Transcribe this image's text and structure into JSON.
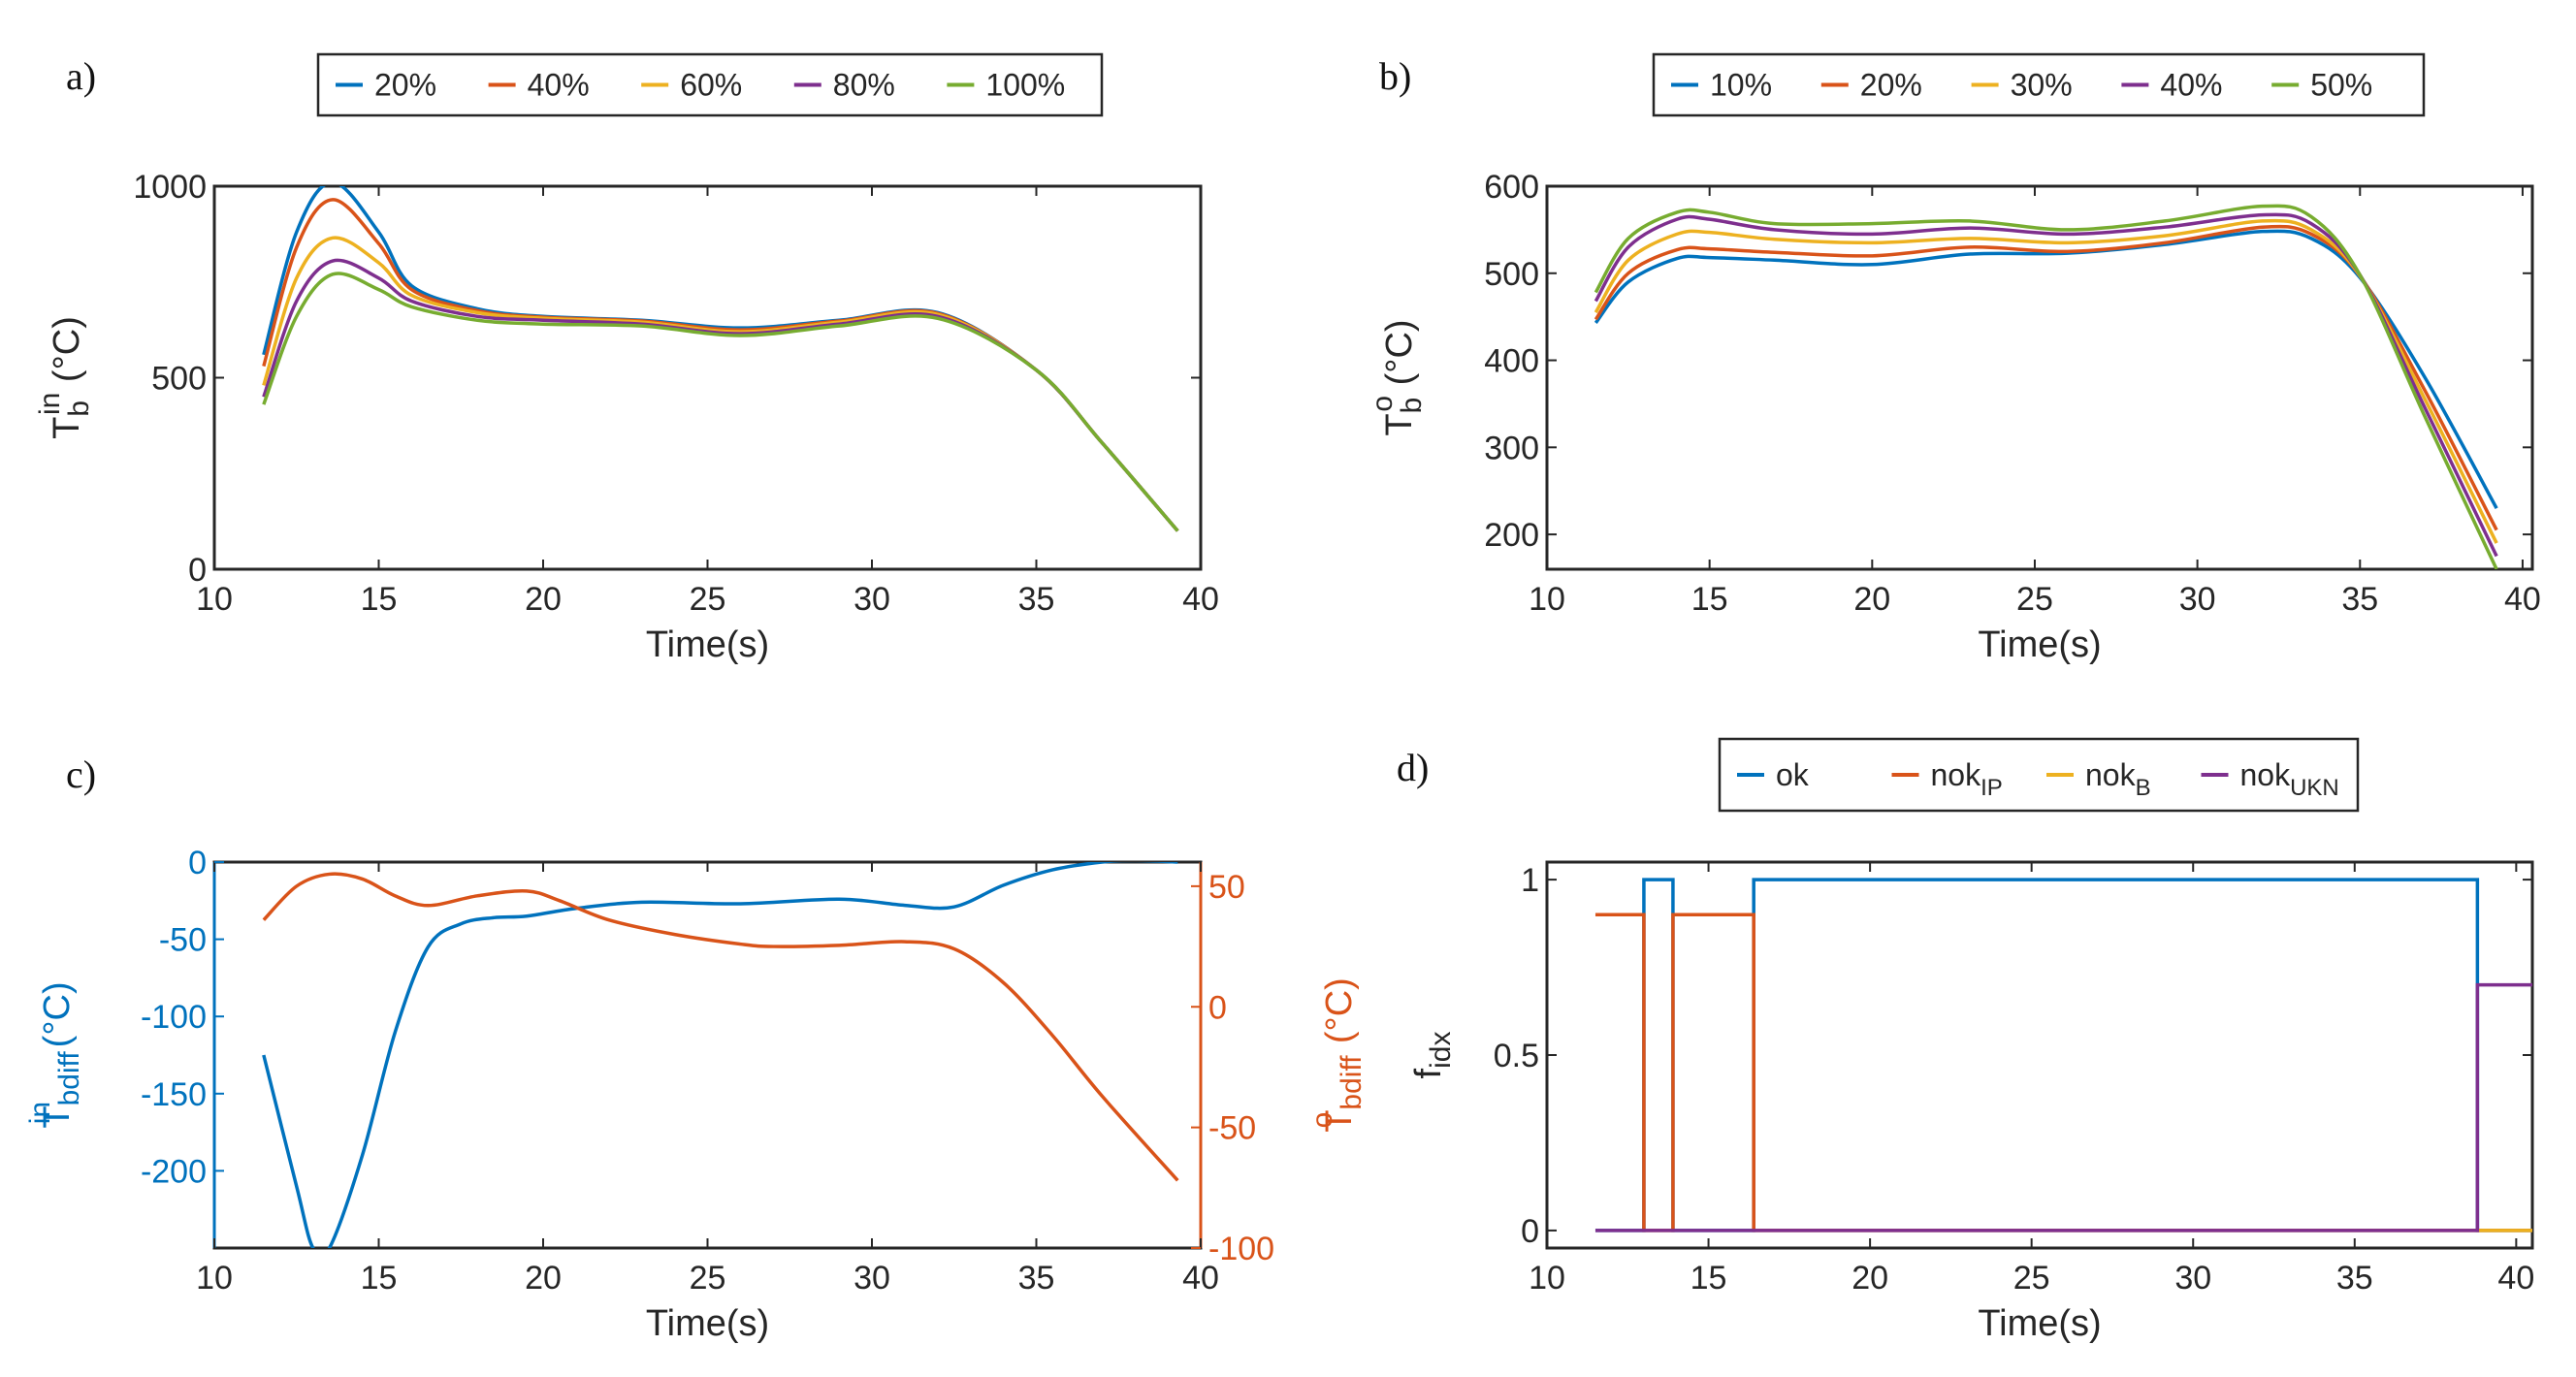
{
  "chart_data": [
    {
      "panel_label": "a)",
      "type": "line",
      "xlabel": "Time(s)",
      "ylabel": {
        "base": "T",
        "sup": "in",
        "sub": "b",
        "unit": " (°C)"
      },
      "xlim": [
        10,
        40
      ],
      "ylim": [
        0,
        1000
      ],
      "xticks": [
        10,
        15,
        20,
        25,
        30,
        35,
        40
      ],
      "yticks": [
        0,
        500,
        1000
      ],
      "legend_position": "top-center",
      "x": [
        11.5,
        12.5,
        13.6,
        15,
        16,
        18,
        20,
        23,
        26,
        29,
        32,
        35,
        37,
        39.3
      ],
      "series": [
        {
          "name": "20%",
          "color": "#0072BD",
          "values": [
            560,
            880,
            1010,
            880,
            740,
            680,
            660,
            650,
            630,
            650,
            670,
            520,
            330,
            100
          ]
        },
        {
          "name": "40%",
          "color": "#D95319",
          "values": [
            530,
            840,
            965,
            850,
            730,
            675,
            658,
            648,
            625,
            648,
            668,
            520,
            330,
            100
          ]
        },
        {
          "name": "60%",
          "color": "#EDB120",
          "values": [
            480,
            760,
            865,
            800,
            715,
            670,
            655,
            645,
            620,
            645,
            665,
            520,
            330,
            100
          ]
        },
        {
          "name": "80%",
          "color": "#7E2F8E",
          "values": [
            450,
            700,
            805,
            760,
            700,
            660,
            650,
            640,
            615,
            640,
            660,
            520,
            330,
            100
          ]
        },
        {
          "name": "100%",
          "color": "#77AC30",
          "values": [
            430,
            660,
            770,
            730,
            685,
            650,
            640,
            635,
            610,
            635,
            655,
            520,
            330,
            100
          ]
        }
      ]
    },
    {
      "panel_label": "b)",
      "type": "line",
      "xlabel": "Time(s)",
      "ylabel": {
        "base": "T",
        "sup": "o",
        "sub": "b",
        "unit": " (°C)"
      },
      "xlim": [
        10,
        40.3
      ],
      "ylim": [
        160,
        600
      ],
      "xticks": [
        10,
        15,
        20,
        25,
        30,
        35,
        40
      ],
      "yticks": [
        200,
        300,
        400,
        500,
        600
      ],
      "legend_position": "top-center",
      "x": [
        11.5,
        12.5,
        14,
        15,
        17,
        20,
        23,
        26,
        29,
        32,
        33.5,
        35,
        37,
        39.2
      ],
      "series": [
        {
          "name": "10%",
          "color": "#0072BD",
          "values": [
            443,
            490,
            517,
            518,
            515,
            510,
            522,
            523,
            533,
            548,
            540,
            495,
            380,
            230
          ]
        },
        {
          "name": "20%",
          "color": "#D95319",
          "values": [
            447,
            500,
            527,
            528,
            524,
            520,
            530,
            525,
            535,
            553,
            545,
            497,
            365,
            205
          ]
        },
        {
          "name": "30%",
          "color": "#EDB120",
          "values": [
            455,
            515,
            545,
            547,
            539,
            535,
            540,
            535,
            543,
            560,
            550,
            497,
            355,
            190
          ]
        },
        {
          "name": "40%",
          "color": "#7E2F8E",
          "values": [
            468,
            530,
            562,
            562,
            550,
            545,
            552,
            545,
            553,
            567,
            557,
            498,
            345,
            175
          ]
        },
        {
          "name": "50%",
          "color": "#77AC30",
          "values": [
            478,
            540,
            570,
            570,
            557,
            557,
            560,
            550,
            560,
            577,
            565,
            498,
            335,
            160
          ]
        }
      ]
    },
    {
      "panel_label": "c)",
      "type": "line",
      "xlabel": "Time(s)",
      "ylabel": {
        "base": "T",
        "sup": "in",
        "sub": "bdiff",
        "unit": " (°C)"
      },
      "ylabel_right": {
        "base": "T",
        "sup": "o",
        "sub": "bdiff",
        "unit": " (°C)"
      },
      "xlim": [
        10,
        40
      ],
      "ylim": [
        -250,
        0
      ],
      "ylim_right": [
        -100,
        60
      ],
      "xticks": [
        10,
        15,
        20,
        25,
        30,
        35,
        40
      ],
      "yticks": [
        -200,
        -150,
        -100,
        -50,
        0
      ],
      "yticks_right": [
        -100,
        -50,
        0,
        50
      ],
      "series": [
        {
          "name": "T_in_bdiff",
          "axis": "left",
          "color": "#0072BD",
          "x": [
            11.5,
            12.5,
            13,
            13.5,
            14.5,
            15.5,
            16.5,
            17.5,
            18.5,
            19.5,
            21,
            23,
            26,
            29,
            31,
            32.5,
            34,
            35.5,
            37,
            38,
            39.3
          ],
          "values": [
            -125,
            -210,
            -250,
            -250,
            -190,
            -110,
            -55,
            -40,
            -36,
            -35,
            -30,
            -26,
            -27,
            -24,
            -28,
            -29,
            -15,
            -5,
            0,
            1,
            0
          ]
        },
        {
          "name": "T_o_bdiff",
          "axis": "right",
          "color": "#D95319",
          "x": [
            11.5,
            12.5,
            13.5,
            14.5,
            15.5,
            16.5,
            18,
            19.5,
            20.5,
            22,
            24,
            26,
            27,
            29,
            31,
            32.5,
            34,
            35.5,
            37,
            39.3
          ],
          "values": [
            36,
            50,
            55,
            53,
            46,
            42,
            46,
            48,
            44,
            36,
            30,
            26,
            25,
            25.5,
            27,
            24,
            10,
            -12,
            -37,
            -72
          ]
        }
      ]
    },
    {
      "panel_label": "d)",
      "type": "line",
      "xlabel": "Time(s)",
      "ylabel": {
        "base": "f",
        "sup": "",
        "sub": "idx",
        "unit": ""
      },
      "xlim": [
        10,
        40.5
      ],
      "ylim": [
        -0.05,
        1.05
      ],
      "xticks": [
        10,
        15,
        20,
        25,
        30,
        35,
        40
      ],
      "yticks": [
        0,
        0.5,
        1
      ],
      "legend_position": "top-center",
      "series": [
        {
          "name": "ok",
          "sub": "",
          "color": "#0072BD",
          "x": [
            11.5,
            13,
            13,
            13.9,
            13.9,
            16.4,
            16.4,
            38.8,
            38.8,
            40.5
          ],
          "values": [
            0,
            0,
            1,
            1,
            0,
            0,
            1,
            1,
            0,
            0
          ]
        },
        {
          "name": "nok",
          "sub": "IP",
          "color": "#D95319",
          "x": [
            11.5,
            13,
            13,
            13.9,
            13.9,
            16.4,
            16.4,
            40.5
          ],
          "values": [
            0.9,
            0.9,
            0,
            0,
            0.9,
            0.9,
            0,
            0
          ]
        },
        {
          "name": "nok",
          "sub": "B",
          "color": "#EDB120",
          "x": [
            38.8,
            40.5
          ],
          "values": [
            0,
            0
          ]
        },
        {
          "name": "nok",
          "sub": "UKN",
          "color": "#7E2F8E",
          "x": [
            11.5,
            38.8,
            38.8,
            40.5
          ],
          "values": [
            0,
            0,
            0.7,
            0.7
          ]
        }
      ]
    }
  ]
}
